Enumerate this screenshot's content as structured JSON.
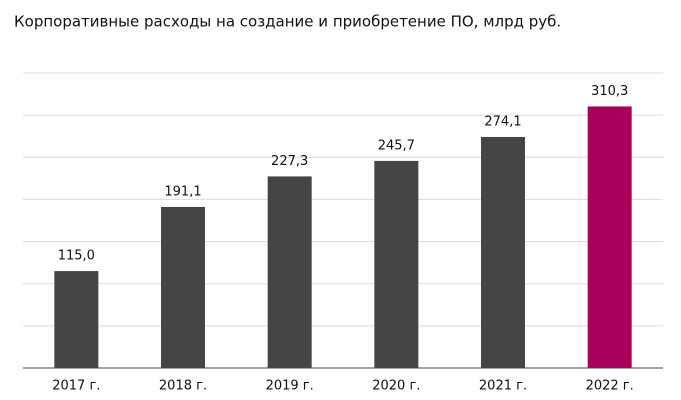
{
  "chart_data": {
    "type": "bar",
    "title": "Корпоративные расходы на создание и приобретение ПО, млрд руб.",
    "categories": [
      "2017 г.",
      "2018 г.",
      "2019 г.",
      "2020 г.",
      "2021 г.",
      "2022 г."
    ],
    "values": [
      115.0,
      191.1,
      227.3,
      245.7,
      274.1,
      310.3
    ],
    "value_labels": [
      "115,0",
      "191,1",
      "227,3",
      "245,7",
      "274,1",
      "310,3"
    ],
    "colors": [
      "#454545",
      "#454545",
      "#454545",
      "#454545",
      "#454545",
      "#a8005a"
    ],
    "ylim": [
      0,
      350
    ],
    "yticks": [
      0,
      50,
      100,
      150,
      200,
      250,
      300,
      350
    ],
    "grid": true
  }
}
